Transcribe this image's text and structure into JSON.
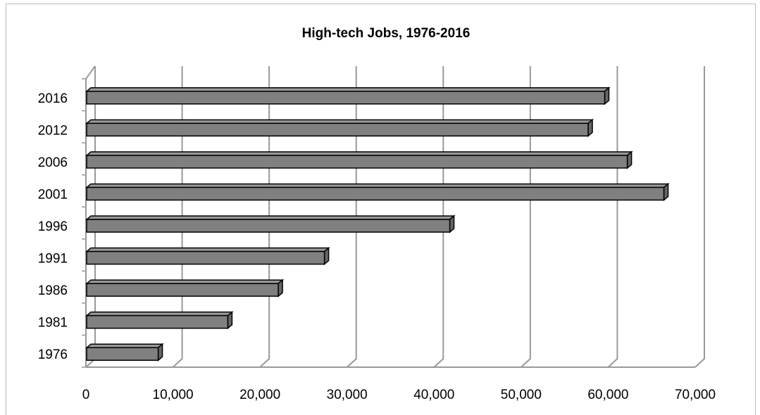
{
  "chart_data": {
    "type": "bar3d_horizontal",
    "title": "High-tech Jobs, 1976-2016",
    "categories": [
      "1976",
      "1981",
      "1986",
      "1991",
      "1996",
      "2001",
      "2006",
      "2012",
      "2016"
    ],
    "values": [
      8300,
      16300,
      22100,
      27400,
      41800,
      66400,
      62200,
      57700,
      59600
    ],
    "color": "#808080",
    "xlim": [
      0,
      70000
    ],
    "xticks": [
      0,
      {
        "value": 10000,
        "label": "10,000"
      },
      {
        "value": 20000,
        "label": "20,000"
      },
      {
        "value": 30000,
        "label": "30,000"
      },
      {
        "value": 40000,
        "label": "40,000"
      },
      {
        "value": 50000,
        "label": "50,000"
      },
      {
        "value": 60000,
        "label": "60,000"
      },
      {
        "value": 70000,
        "label": "70,000"
      }
    ],
    "grid": true
  }
}
